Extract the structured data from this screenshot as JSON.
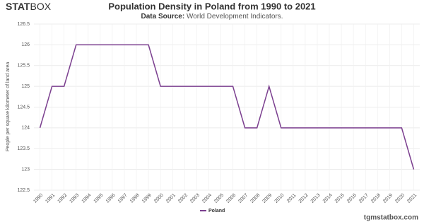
{
  "logo": {
    "strong": "STAT",
    "light": "BOX"
  },
  "footer": "tgmstatbox.com",
  "chart_data": {
    "type": "line",
    "title": "Population Density in Poland from 1990 to 2021",
    "subtitle_label": "Data Source:",
    "subtitle": "World Development Indicators.",
    "y_label": "People per square kilometer of land area",
    "categories": [
      "1990",
      "1991",
      "1992",
      "1993",
      "1994",
      "1995",
      "1996",
      "1997",
      "1998",
      "1999",
      "2000",
      "2001",
      "2002",
      "2003",
      "2004",
      "2005",
      "2006",
      "2007",
      "2008",
      "2009",
      "2010",
      "2011",
      "2012",
      "2013",
      "2014",
      "2015",
      "2016",
      "2017",
      "2018",
      "2019",
      "2020",
      "2021"
    ],
    "series": [
      {
        "name": "Poland",
        "color": "#7b3f8f",
        "values": [
          124,
          125,
          125,
          126,
          126,
          126,
          126,
          126,
          126,
          126,
          125,
          125,
          125,
          125,
          125,
          125,
          125,
          124,
          124,
          125,
          124,
          124,
          124,
          124,
          124,
          124,
          124,
          124,
          124,
          124,
          124,
          123
        ]
      }
    ],
    "ylim": [
      122.5,
      126.5
    ],
    "yticks": [
      122.5,
      123,
      123.5,
      124,
      124.5,
      125,
      125.5,
      126,
      126.5
    ],
    "grid": true,
    "legend": "bottom"
  }
}
